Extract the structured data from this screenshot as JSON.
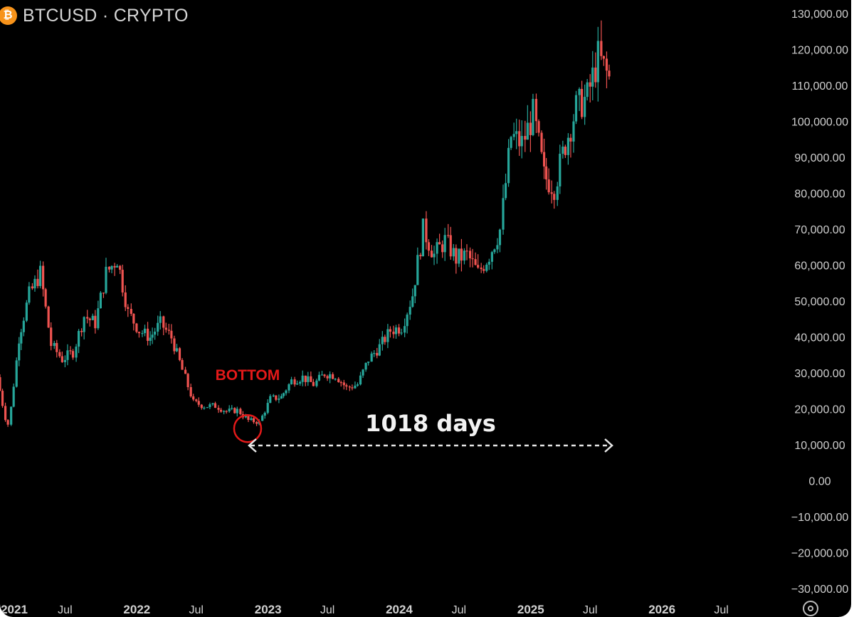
{
  "header": {
    "icon": "bitcoin-coin-icon",
    "icon_glyph": "₿",
    "symbol": "BTCUSD · CRYPTO"
  },
  "colors": {
    "background": "#000000",
    "up": "#26a69a",
    "down": "#ef5350",
    "annotation": "#e31919",
    "accent": "#f7931a"
  },
  "chart_data": {
    "type": "candlestick",
    "x": [
      "2021-01",
      "2021-02",
      "2021-03",
      "2021-04",
      "2021-05",
      "2021-06",
      "2021-07",
      "2021-08",
      "2021-09",
      "2021-10",
      "2021-11",
      "2021-12",
      "2022-01",
      "2022-02",
      "2022-03",
      "2022-04",
      "2022-05",
      "2022-06",
      "2022-07",
      "2022-08",
      "2022-09",
      "2022-10",
      "2022-11",
      "2022-12",
      "2023-01",
      "2023-02",
      "2023-03",
      "2023-04",
      "2023-05",
      "2023-06",
      "2023-07",
      "2023-08",
      "2023-09",
      "2023-10",
      "2023-11",
      "2023-12",
      "2024-01",
      "2024-02",
      "2024-03",
      "2024-04",
      "2024-05",
      "2024-06",
      "2024-07",
      "2024-08",
      "2024-09",
      "2024-10",
      "2024-11",
      "2024-12",
      "2025-01",
      "2025-02",
      "2025-03",
      "2025-04",
      "2025-05",
      "2025-06",
      "2025-07",
      "2025-08"
    ],
    "series": [
      {
        "values": [
          14000,
          40000,
          52000,
          58000,
          38000,
          34000,
          36000,
          46000,
          44000,
          58000,
          62000,
          47000,
          42000,
          40000,
          44000,
          40000,
          31000,
          22000,
          21000,
          21000,
          19500,
          19800,
          17000,
          16500,
          23000,
          23500,
          28000,
          29000,
          27000,
          30000,
          29500,
          26000,
          27000,
          34000,
          37500,
          42000,
          43000,
          52000,
          70000,
          63000,
          67000,
          62000,
          63000,
          58000,
          63000,
          70000,
          96000,
          94000,
          102000,
          85000,
          82000,
          94000,
          104000,
          107000,
          118000,
          112000
        ]
      }
    ],
    "yaxis": {
      "ticks": [
        "130,000.00",
        "120,000.00",
        "110,000.00",
        "100,000.00",
        "90,000.00",
        "80,000.00",
        "70,000.00",
        "60,000.00",
        "50,000.00",
        "40,000.00",
        "30,000.00",
        "20,000.00",
        "10,000.00",
        "0.00",
        "−10,000.00",
        "−20,000.00",
        "−30,000.00"
      ],
      "ylim": [
        -30000,
        130000
      ]
    },
    "xaxis": {
      "ticks": [
        {
          "label": "2021",
          "date": "2021-01-01",
          "year": true
        },
        {
          "label": "Jul",
          "date": "2021-07-01",
          "year": false
        },
        {
          "label": "2022",
          "date": "2022-01-01",
          "year": true
        },
        {
          "label": "Jul",
          "date": "2022-07-01",
          "year": false
        },
        {
          "label": "2023",
          "date": "2023-01-01",
          "year": true
        },
        {
          "label": "Jul",
          "date": "2023-07-01",
          "year": false
        },
        {
          "label": "2024",
          "date": "2024-01-01",
          "year": true
        },
        {
          "label": "Jul",
          "date": "2024-07-01",
          "year": false
        },
        {
          "label": "2025",
          "date": "2025-01-01",
          "year": true
        },
        {
          "label": "Jul",
          "date": "2025-07-01",
          "year": false
        },
        {
          "label": "2026",
          "date": "2026-01-01",
          "year": true
        },
        {
          "label": "Jul",
          "date": "2026-07-01",
          "year": false
        }
      ]
    },
    "annotations": {
      "bottom_label": "BOTTOM",
      "bottom_date": "2022-11-21",
      "bottom_value": 15500,
      "span_label": "1018 days",
      "span_start": "2022-11-21",
      "span_end": "2025-09-04",
      "span_value": 10000
    },
    "grid": false,
    "legend": "none"
  },
  "footer": {
    "settings_icon": "settings-icon"
  }
}
